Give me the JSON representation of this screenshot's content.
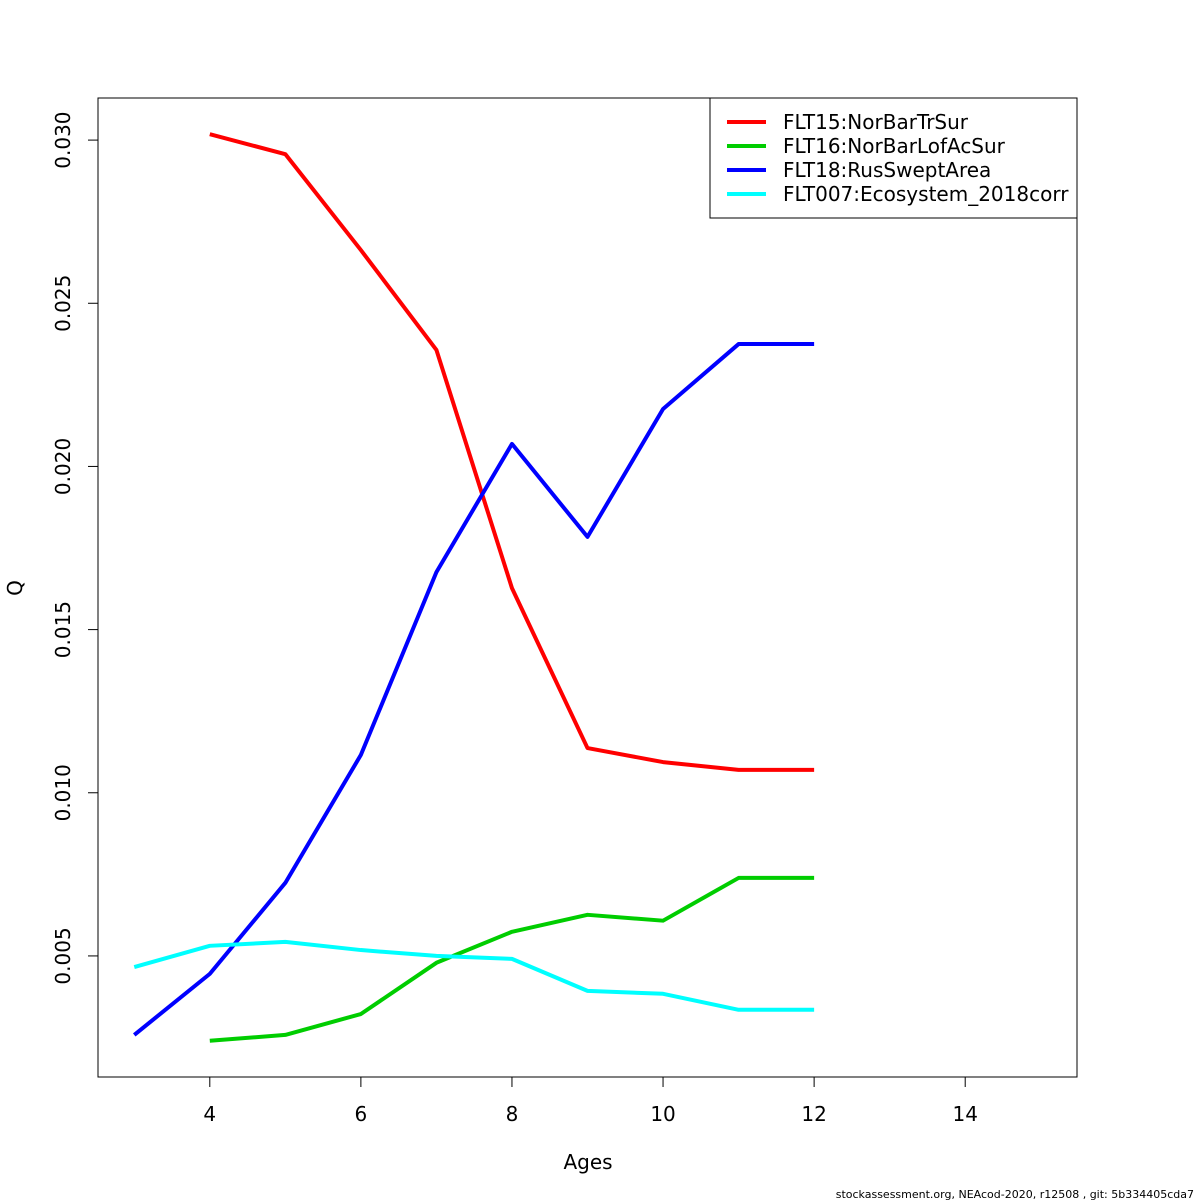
{
  "chart_data": {
    "type": "line",
    "x_label": "Ages",
    "y_label": "Q",
    "footnote": "stockassessment.org, NEAcod-2020, r12508 , git: 5b334405cda7",
    "x": [
      3,
      4,
      5,
      6,
      7,
      8,
      9,
      10,
      11,
      12
    ],
    "series": [
      {
        "name": "FLT15:NorBarTrSur",
        "color": "#ff0000",
        "values": [
          null,
          0.03018,
          0.02957,
          0.02663,
          0.02357,
          0.01627,
          0.01137,
          0.01094,
          0.0107,
          0.0107
        ]
      },
      {
        "name": "FLT16:NorBarLofAcSur",
        "color": "#00cd00",
        "values": [
          null,
          0.0024,
          0.00258,
          0.00322,
          0.00479,
          0.00574,
          0.00626,
          0.00608,
          0.00739,
          0.00739
        ]
      },
      {
        "name": "FLT18:RusSweptArea",
        "color": "#0000ff",
        "values": [
          0.00258,
          0.00445,
          0.00724,
          0.01116,
          0.01676,
          0.02069,
          0.01784,
          0.02176,
          0.02375,
          0.02375
        ]
      },
      {
        "name": "FLT007:Ecosystem_2018corr",
        "color": "#00ffff",
        "values": [
          0.00466,
          0.00531,
          0.00543,
          0.00518,
          0.005,
          0.00491,
          0.00393,
          0.00384,
          0.00335,
          0.00335
        ]
      }
    ],
    "xlim": [
      2.52,
      15.48
    ],
    "xticks": [
      4,
      6,
      8,
      10,
      12,
      14
    ],
    "ylim": [
      0.00129,
      0.03129
    ],
    "yticks": [
      {
        "value": 0.005,
        "label": "0.005"
      },
      {
        "value": 0.01,
        "label": "0.010"
      },
      {
        "value": 0.015,
        "label": "0.015"
      },
      {
        "value": 0.02,
        "label": "0.020"
      },
      {
        "value": 0.025,
        "label": "0.025"
      },
      {
        "value": 0.03,
        "label": "0.030"
      }
    ],
    "legend": "top-right",
    "grid": false
  }
}
